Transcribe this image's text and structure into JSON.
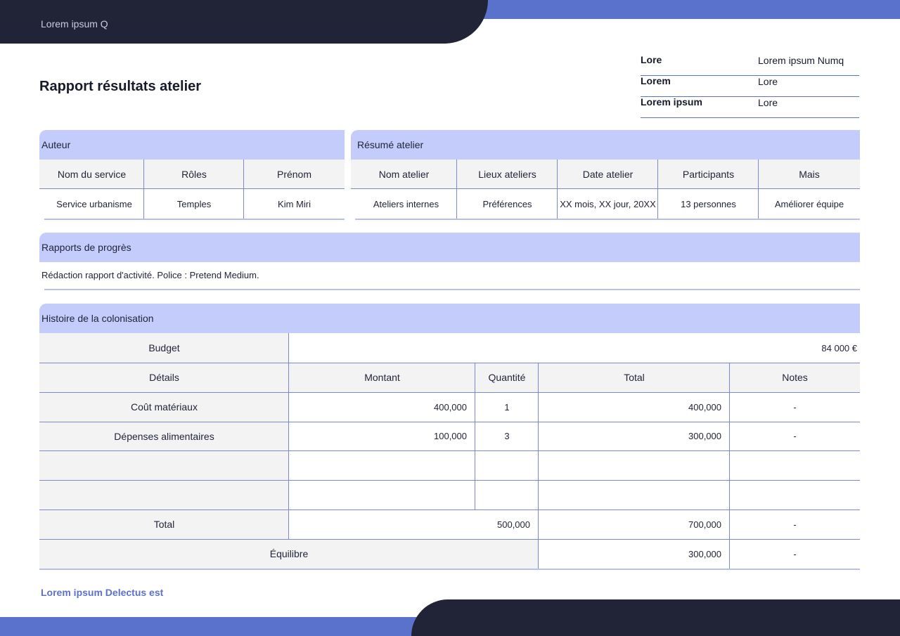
{
  "header": {
    "app_title": "Lorem ipsum Q"
  },
  "page_title": "Rapport résultats atelier",
  "info": [
    {
      "key": "Lore",
      "value": "Lorem ipsum Numq"
    },
    {
      "key": "Lorem",
      "value": "Lore"
    },
    {
      "key": "Lorem ipsum",
      "value": "Lore"
    }
  ],
  "auteur": {
    "title": "Auteur",
    "headers": [
      "Nom du service",
      "Rôles",
      "Prénom"
    ],
    "row": [
      "Service urbanisme",
      "Temples",
      "Kim Miri"
    ]
  },
  "resume": {
    "title": "Résumé atelier",
    "headers": [
      "Nom atelier",
      "Lieux ateliers",
      "Date atelier",
      "Participants",
      "Mais"
    ],
    "row": [
      "Ateliers internes",
      "Préférences",
      "XX mois, XX jour, 20XX",
      "13 personnes",
      "Améliorer équipe"
    ]
  },
  "progress": {
    "title": "Rapports de progrès",
    "text": "Rédaction rapport d'activité. Police : Pretend Medium."
  },
  "history": {
    "title": "Histoire de la colonisation",
    "budget_label": "Budget",
    "budget_value": "84 000 €",
    "headers": [
      "Détails",
      "Montant",
      "Quantité",
      "Total",
      "Notes"
    ],
    "rows": [
      {
        "details": "Coût matériaux",
        "montant": "400,000",
        "quantite": "1",
        "total": "400,000",
        "notes": "-"
      },
      {
        "details": "Dépenses alimentaires",
        "montant": "100,000",
        "quantite": "3",
        "total": "300,000",
        "notes": "-"
      },
      {
        "details": "",
        "montant": "",
        "quantite": "",
        "total": "",
        "notes": ""
      },
      {
        "details": "",
        "montant": "",
        "quantite": "",
        "total": "",
        "notes": ""
      }
    ],
    "total_row": {
      "label": "Total",
      "montant": "500,000",
      "total": "700,000",
      "notes": "-"
    },
    "balance_row": {
      "label": "Équilibre",
      "total": "300,000",
      "notes": "-"
    }
  },
  "footer": {
    "text": "Lorem ipsum Delectus est"
  },
  "colors": {
    "accent": "#5b72cc",
    "dark": "#212436",
    "bar": "#c3ccfa"
  }
}
